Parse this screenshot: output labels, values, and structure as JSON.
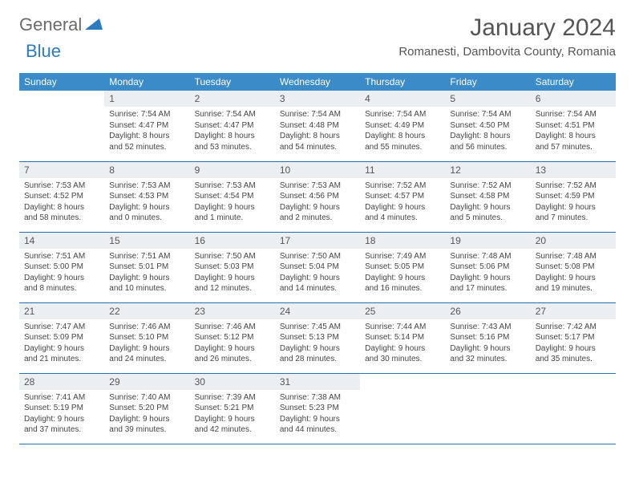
{
  "logo": {
    "general": "General",
    "blue": "Blue"
  },
  "title": "January 2024",
  "location": "Romanesti, Dambovita County, Romania",
  "colors": {
    "header_bg": "#3b8bc9",
    "header_text": "#ffffff",
    "daynum_bg": "#eceff1",
    "row_border": "#2b6fa8",
    "logo_gray": "#6b6b6b",
    "logo_blue": "#2b7bbf"
  },
  "weekdays": [
    "Sunday",
    "Monday",
    "Tuesday",
    "Wednesday",
    "Thursday",
    "Friday",
    "Saturday"
  ],
  "weeks": [
    [
      null,
      {
        "n": "1",
        "sr": "7:54 AM",
        "ss": "4:47 PM",
        "dh": "8",
        "dm": "52"
      },
      {
        "n": "2",
        "sr": "7:54 AM",
        "ss": "4:47 PM",
        "dh": "8",
        "dm": "53"
      },
      {
        "n": "3",
        "sr": "7:54 AM",
        "ss": "4:48 PM",
        "dh": "8",
        "dm": "54"
      },
      {
        "n": "4",
        "sr": "7:54 AM",
        "ss": "4:49 PM",
        "dh": "8",
        "dm": "55"
      },
      {
        "n": "5",
        "sr": "7:54 AM",
        "ss": "4:50 PM",
        "dh": "8",
        "dm": "56"
      },
      {
        "n": "6",
        "sr": "7:54 AM",
        "ss": "4:51 PM",
        "dh": "8",
        "dm": "57"
      }
    ],
    [
      {
        "n": "7",
        "sr": "7:53 AM",
        "ss": "4:52 PM",
        "dh": "8",
        "dm": "58"
      },
      {
        "n": "8",
        "sr": "7:53 AM",
        "ss": "4:53 PM",
        "dh": "9",
        "dm": "0"
      },
      {
        "n": "9",
        "sr": "7:53 AM",
        "ss": "4:54 PM",
        "dh": "9",
        "dm": "1"
      },
      {
        "n": "10",
        "sr": "7:53 AM",
        "ss": "4:56 PM",
        "dh": "9",
        "dm": "2"
      },
      {
        "n": "11",
        "sr": "7:52 AM",
        "ss": "4:57 PM",
        "dh": "9",
        "dm": "4"
      },
      {
        "n": "12",
        "sr": "7:52 AM",
        "ss": "4:58 PM",
        "dh": "9",
        "dm": "5"
      },
      {
        "n": "13",
        "sr": "7:52 AM",
        "ss": "4:59 PM",
        "dh": "9",
        "dm": "7"
      }
    ],
    [
      {
        "n": "14",
        "sr": "7:51 AM",
        "ss": "5:00 PM",
        "dh": "9",
        "dm": "8"
      },
      {
        "n": "15",
        "sr": "7:51 AM",
        "ss": "5:01 PM",
        "dh": "9",
        "dm": "10"
      },
      {
        "n": "16",
        "sr": "7:50 AM",
        "ss": "5:03 PM",
        "dh": "9",
        "dm": "12"
      },
      {
        "n": "17",
        "sr": "7:50 AM",
        "ss": "5:04 PM",
        "dh": "9",
        "dm": "14"
      },
      {
        "n": "18",
        "sr": "7:49 AM",
        "ss": "5:05 PM",
        "dh": "9",
        "dm": "16"
      },
      {
        "n": "19",
        "sr": "7:48 AM",
        "ss": "5:06 PM",
        "dh": "9",
        "dm": "17"
      },
      {
        "n": "20",
        "sr": "7:48 AM",
        "ss": "5:08 PM",
        "dh": "9",
        "dm": "19"
      }
    ],
    [
      {
        "n": "21",
        "sr": "7:47 AM",
        "ss": "5:09 PM",
        "dh": "9",
        "dm": "21"
      },
      {
        "n": "22",
        "sr": "7:46 AM",
        "ss": "5:10 PM",
        "dh": "9",
        "dm": "24"
      },
      {
        "n": "23",
        "sr": "7:46 AM",
        "ss": "5:12 PM",
        "dh": "9",
        "dm": "26"
      },
      {
        "n": "24",
        "sr": "7:45 AM",
        "ss": "5:13 PM",
        "dh": "9",
        "dm": "28"
      },
      {
        "n": "25",
        "sr": "7:44 AM",
        "ss": "5:14 PM",
        "dh": "9",
        "dm": "30"
      },
      {
        "n": "26",
        "sr": "7:43 AM",
        "ss": "5:16 PM",
        "dh": "9",
        "dm": "32"
      },
      {
        "n": "27",
        "sr": "7:42 AM",
        "ss": "5:17 PM",
        "dh": "9",
        "dm": "35"
      }
    ],
    [
      {
        "n": "28",
        "sr": "7:41 AM",
        "ss": "5:19 PM",
        "dh": "9",
        "dm": "37"
      },
      {
        "n": "29",
        "sr": "7:40 AM",
        "ss": "5:20 PM",
        "dh": "9",
        "dm": "39"
      },
      {
        "n": "30",
        "sr": "7:39 AM",
        "ss": "5:21 PM",
        "dh": "9",
        "dm": "42"
      },
      {
        "n": "31",
        "sr": "7:38 AM",
        "ss": "5:23 PM",
        "dh": "9",
        "dm": "44"
      },
      null,
      null,
      null
    ]
  ],
  "labels": {
    "sunrise": "Sunrise:",
    "sunset": "Sunset:",
    "daylight_a": "Daylight:",
    "daylight_b": "hours and",
    "daylight_c": "minutes.",
    "daylight_c1": "minute."
  }
}
